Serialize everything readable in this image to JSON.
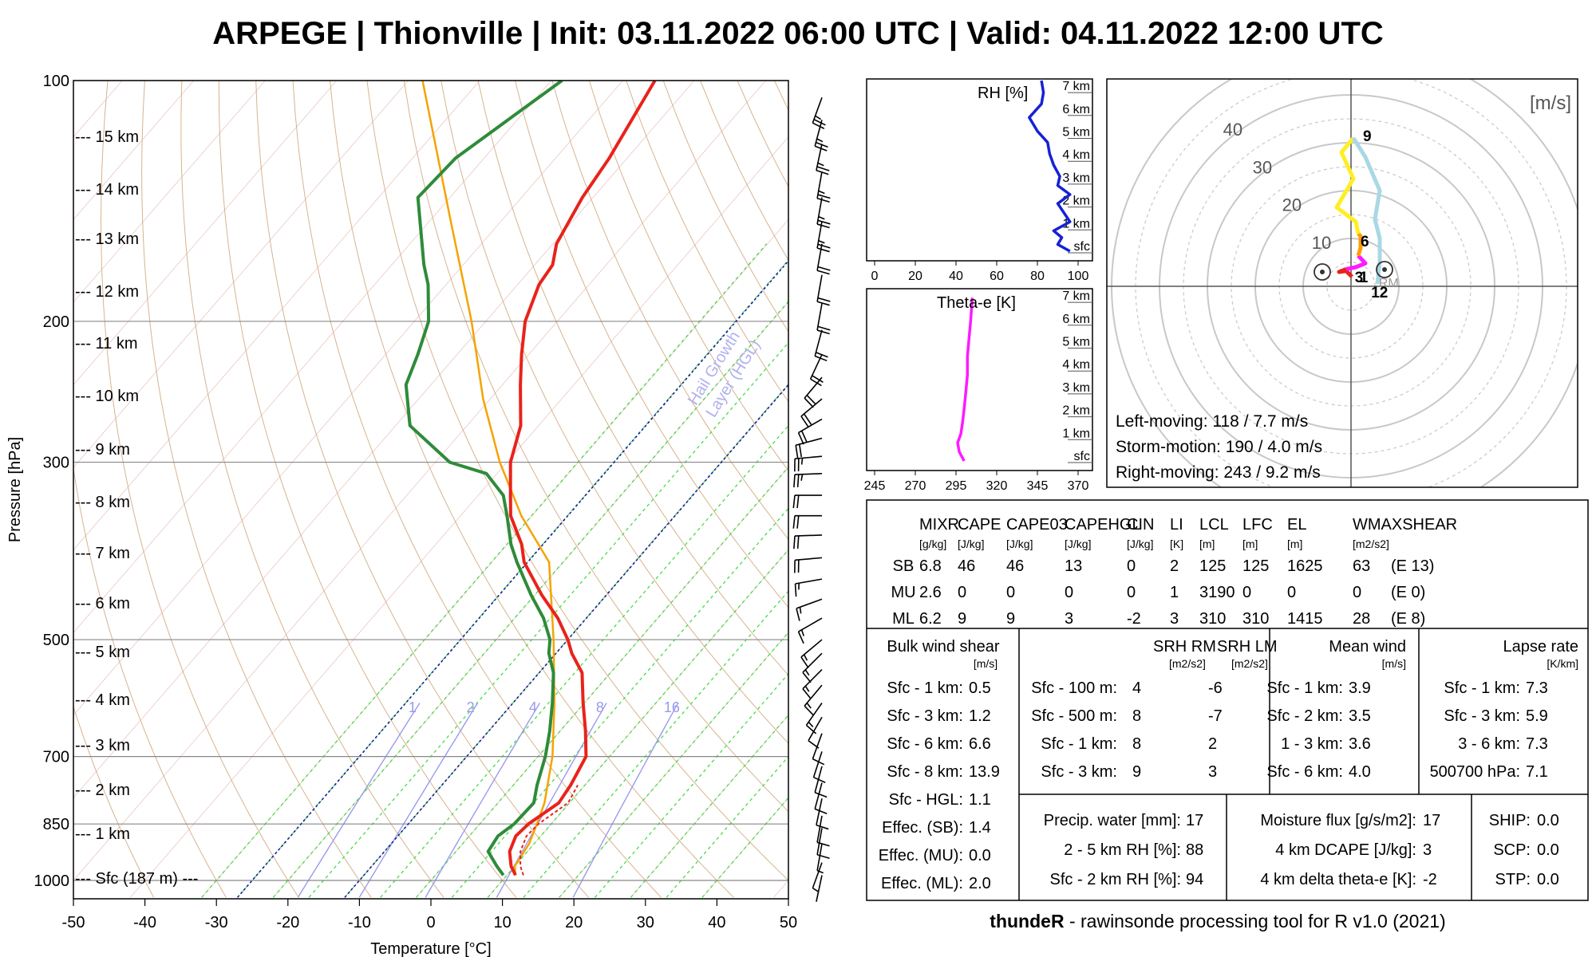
{
  "title": "ARPEGE | Thionville | Init: 03.11.2022 06:00 UTC | Valid: 04.11.2022 12:00 UTC",
  "colors": {
    "temperature": "#e8231b",
    "dewpoint": "#2e8b3a",
    "parcel": "#f5a300",
    "rh": "#1621d6",
    "thetae": "#ff1aff",
    "dry_adiabat": "#c89a6a",
    "moist_adiabat": "#44dd44",
    "mixing_ratio": "#9a9aee",
    "hgl": "#1a1aa6"
  },
  "chart_data": [
    {
      "type": "line",
      "name": "skew-t",
      "xlabel": "Temperature [°C]",
      "ylabel": "Pressure [hPa]",
      "xlim": [
        -50,
        50
      ],
      "ylim": [
        1050,
        100
      ],
      "x_ticks": [
        "-50",
        "-40",
        "-30",
        "-20",
        "-10",
        "0",
        "10",
        "20",
        "30",
        "40",
        "50"
      ],
      "p_ticks": [
        "100",
        "200",
        "300",
        "500",
        "700",
        "850",
        "1000"
      ],
      "height_labels": [
        "--- Sfc (187 m) ---",
        "--- 1 km",
        "--- 2 km",
        "--- 3 km",
        "--- 4 km",
        "--- 5 km",
        "--- 6 km",
        "--- 7 km",
        "--- 8 km",
        "--- 9 km",
        "--- 10 km",
        "--- 11 km",
        "--- 12 km",
        "--- 13 km",
        "--- 14 km",
        "--- 15 km"
      ],
      "mixing_ratio_labels": [
        "1",
        "2",
        "4",
        "8",
        "16"
      ],
      "hgl_label_1": "Hail Growth",
      "hgl_label_2": "Layer (HGL)",
      "series": [
        {
          "name": "temperature",
          "p": [
            985,
            960,
            920,
            880,
            850,
            800,
            760,
            700,
            650,
            600,
            550,
            520,
            500,
            470,
            440,
            400,
            380,
            350,
            330,
            300,
            270,
            240,
            220,
            200,
            180,
            170,
            160,
            140,
            125,
            100
          ],
          "t": [
            11.2,
            9.5,
            7.5,
            6.5,
            6.8,
            8.5,
            8.0,
            6.7,
            3.5,
            -0.2,
            -4.0,
            -7.8,
            -10.0,
            -14.0,
            -19.0,
            -25.5,
            -28.0,
            -33.0,
            -35.5,
            -39.5,
            -42.5,
            -47.5,
            -51.0,
            -54.5,
            -57.0,
            -57.5,
            -59.5,
            -61.5,
            -62.5,
            -65.5
          ]
        },
        {
          "name": "dewpoint",
          "p": [
            985,
            960,
            920,
            880,
            850,
            800,
            760,
            700,
            650,
            600,
            550,
            520,
            500,
            470,
            440,
            400,
            380,
            350,
            330,
            310,
            300,
            270,
            240,
            220,
            200,
            180,
            170,
            140,
            125,
            100
          ],
          "t": [
            9.5,
            7.5,
            4.5,
            4.0,
            4.8,
            5.0,
            3.3,
            1.0,
            -1.5,
            -4.5,
            -8.0,
            -11.0,
            -12.5,
            -16.0,
            -20.5,
            -26.5,
            -29.5,
            -33.5,
            -36.5,
            -41.5,
            -48.0,
            -58.0,
            -63.5,
            -65.5,
            -68.0,
            -72.5,
            -75.5,
            -84.5,
            -84.0,
            -78.5
          ]
        },
        {
          "name": "parcel",
          "p": [
            985,
            960,
            900,
            850,
            800,
            700,
            600,
            500,
            400,
            350,
            300,
            250,
            200,
            150,
            100
          ],
          "t": [
            11.2,
            10.0,
            9.3,
            8.0,
            6.5,
            2.0,
            -4.2,
            -12.0,
            -22.0,
            -31.5,
            -41.0,
            -51.0,
            -62.0,
            -77.0,
            -98.0
          ]
        },
        {
          "name": "virtual",
          "p": [
            985,
            960,
            920,
            880,
            850,
            800,
            760
          ],
          "t": [
            12.3,
            10.8,
            9.0,
            8.0,
            8.2,
            9.8,
            9.0
          ]
        }
      ],
      "wind_barbs": [
        {
          "p": 985,
          "dir": 192,
          "spd": 2.0
        },
        {
          "p": 950,
          "dir": 200,
          "spd": 4.0
        },
        {
          "p": 900,
          "dir": 190,
          "spd": 4.5
        },
        {
          "p": 860,
          "dir": 190,
          "spd": 5.0
        },
        {
          "p": 830,
          "dir": 190,
          "spd": 5.0
        },
        {
          "p": 790,
          "dir": 192,
          "spd": 5.0
        },
        {
          "p": 755,
          "dir": 195,
          "spd": 5.0
        },
        {
          "p": 720,
          "dir": 195,
          "spd": 5.0
        },
        {
          "p": 690,
          "dir": 198,
          "spd": 6.0
        },
        {
          "p": 655,
          "dir": 200,
          "spd": 6.0
        },
        {
          "p": 625,
          "dir": 210,
          "spd": 7.0
        },
        {
          "p": 600,
          "dir": 215,
          "spd": 7.5
        },
        {
          "p": 570,
          "dir": 220,
          "spd": 8.0
        },
        {
          "p": 545,
          "dir": 225,
          "spd": 8.0
        },
        {
          "p": 520,
          "dir": 225,
          "spd": 8.5
        },
        {
          "p": 500,
          "dir": 230,
          "spd": 9.0
        },
        {
          "p": 470,
          "dir": 240,
          "spd": 9.0
        },
        {
          "p": 445,
          "dir": 250,
          "spd": 9.0
        },
        {
          "p": 420,
          "dir": 260,
          "spd": 9.5
        },
        {
          "p": 395,
          "dir": 265,
          "spd": 10.0
        },
        {
          "p": 370,
          "dir": 268,
          "spd": 11.0
        },
        {
          "p": 350,
          "dir": 270,
          "spd": 12.0
        },
        {
          "p": 330,
          "dir": 270,
          "spd": 12.0
        },
        {
          "p": 310,
          "dir": 268,
          "spd": 13.0
        },
        {
          "p": 295,
          "dir": 265,
          "spd": 13.0
        },
        {
          "p": 280,
          "dir": 255,
          "spd": 12.0
        },
        {
          "p": 265,
          "dir": 240,
          "spd": 12.0
        },
        {
          "p": 250,
          "dir": 230,
          "spd": 12.0
        },
        {
          "p": 235,
          "dir": 220,
          "spd": 11.0
        },
        {
          "p": 220,
          "dir": 205,
          "spd": 11.0
        },
        {
          "p": 205,
          "dir": 195,
          "spd": 11.0
        },
        {
          "p": 190,
          "dir": 190,
          "spd": 11.5
        },
        {
          "p": 175,
          "dir": 190,
          "spd": 12.0
        },
        {
          "p": 160,
          "dir": 190,
          "spd": 12.0
        },
        {
          "p": 150,
          "dir": 190,
          "spd": 12.5
        },
        {
          "p": 140,
          "dir": 190,
          "spd": 13.0
        },
        {
          "p": 130,
          "dir": 190,
          "spd": 13.0
        },
        {
          "p": 120,
          "dir": 192,
          "spd": 13.5
        },
        {
          "p": 112,
          "dir": 195,
          "spd": 14.0
        },
        {
          "p": 105,
          "dir": 200,
          "spd": 14.0
        }
      ]
    },
    {
      "type": "line",
      "name": "rh-profile",
      "title": "RH [%]",
      "xlim": [
        0,
        100
      ],
      "x_ticks": [
        "0",
        "20",
        "40",
        "60",
        "80",
        "100"
      ],
      "y_labels": [
        "sfc",
        "1 km",
        "2 km",
        "3 km",
        "4 km",
        "5 km",
        "6 km",
        "7 km"
      ],
      "ylim": [
        0,
        7.5
      ],
      "series": [
        {
          "name": "rh",
          "x": [
            96,
            90,
            92,
            88,
            96,
            93,
            90,
            96,
            90,
            91,
            88,
            86,
            85,
            80,
            76,
            82,
            83,
            82
          ],
          "y": [
            0,
            0.3,
            0.6,
            0.9,
            1.3,
            1.7,
            2.1,
            2.5,
            2.9,
            3.3,
            3.8,
            4.3,
            4.8,
            5.3,
            5.9,
            6.5,
            7.0,
            7.6
          ]
        }
      ]
    },
    {
      "type": "line",
      "name": "thetae-profile",
      "title": "Theta-e [K]",
      "xlim": [
        245,
        370
      ],
      "x_ticks": [
        "245",
        "270",
        "295",
        "320",
        "345",
        "370"
      ],
      "y_labels": [
        "sfc",
        "1 km",
        "2 km",
        "3 km",
        "4 km",
        "5 km",
        "6 km",
        "7 km"
      ],
      "ylim": [
        0,
        7.5
      ],
      "series": [
        {
          "name": "thetae",
          "x": [
            300,
            297,
            296,
            298,
            299,
            300,
            301,
            302,
            302,
            303,
            304,
            305
          ],
          "y": [
            0,
            0.4,
            0.8,
            1.2,
            1.7,
            2.3,
            3.0,
            3.8,
            4.6,
            5.4,
            6.2,
            7.2
          ]
        }
      ]
    },
    {
      "type": "line",
      "name": "hodograph",
      "unit": "[m/s]",
      "ring_labels": [
        "10",
        "20",
        "30",
        "40"
      ],
      "point_labels": [
        "9",
        "6",
        "3",
        "1",
        "12",
        "RM"
      ],
      "series": [
        {
          "name": "0-1 km",
          "color": "#e8231b",
          "u": [
            0.2,
            -1.0,
            -2.5,
            -1.0
          ],
          "v": [
            2.0,
            3.2,
            3.0,
            3.6
          ]
        },
        {
          "name": "1-3 km",
          "color": "#ff1aff",
          "u": [
            -1.0,
            1.0,
            3.0,
            1.5
          ],
          "v": [
            3.6,
            4.0,
            4.8,
            6.4
          ]
        },
        {
          "name": "3-6 km",
          "color": "#ff9e00",
          "u": [
            1.5,
            2.0,
            2.0,
            1.5
          ],
          "v": [
            6.4,
            8.0,
            10.5,
            11.0
          ]
        },
        {
          "name": "6-9 km",
          "color": "#ffee22",
          "u": [
            1.5,
            1.0,
            -3.0,
            0.5,
            -2.0,
            0.5
          ],
          "v": [
            11.0,
            13.5,
            16.5,
            22.5,
            28.0,
            31.0
          ]
        },
        {
          "name": "9-12 km",
          "color": "#a8d8e4",
          "u": [
            0.5,
            3.0,
            6.0,
            5.0,
            6.0,
            6.0,
            5.5
          ],
          "v": [
            31.0,
            27.0,
            20.0,
            14.0,
            10.0,
            5.0,
            0.5
          ]
        }
      ],
      "storm_motion": {
        "lm_u": -6,
        "lm_v": 3,
        "rm_u": 7.0,
        "rm_v": 3.5
      },
      "left_moving": "Left-moving: 118 / 7.7 m/s",
      "storm_motion_text": "Storm-motion: 190 / 4.0 m/s",
      "right_moving": "Right-moving: 243 / 9.2 m/s"
    }
  ],
  "params": {
    "headers": [
      "MIXR",
      "CAPE",
      "CAPE03",
      "CAPEHGL",
      "CIN",
      "LI",
      "LCL",
      "LFC",
      "EL",
      "WMAXSHEAR"
    ],
    "units": [
      "[g/kg]",
      "[J/kg]",
      "[J/kg]",
      "[J/kg]",
      "[J/kg]",
      "[K]",
      "[m]",
      "[m]",
      "[m]",
      "[m2/s2]"
    ],
    "rows": [
      {
        "label": "SB",
        "vals": [
          "6.8",
          "46",
          "46",
          "13",
          "0",
          "2",
          "125",
          "125",
          "1625",
          "63",
          "(E 13)"
        ]
      },
      {
        "label": "MU",
        "vals": [
          "2.6",
          "0",
          "0",
          "0",
          "0",
          "1",
          "3190",
          "0",
          "0",
          "0",
          "(E 0)"
        ]
      },
      {
        "label": "ML",
        "vals": [
          "6.2",
          "9",
          "9",
          "3",
          "-2",
          "3",
          "310",
          "310",
          "1415",
          "28",
          "(E 8)"
        ]
      }
    ]
  },
  "shear": {
    "title": "Bulk wind shear",
    "unit": "[m/s]",
    "rows": [
      {
        "k": "Sfc - 1 km:",
        "v": "0.5"
      },
      {
        "k": "Sfc - 3 km:",
        "v": "1.2"
      },
      {
        "k": "Sfc - 6 km:",
        "v": "6.6"
      },
      {
        "k": "Sfc - 8 km:",
        "v": "13.9"
      },
      {
        "k": "Sfc - HGL:",
        "v": "1.1"
      },
      {
        "k": "Effec. (SB):",
        "v": "1.4"
      },
      {
        "k": "Effec. (MU):",
        "v": "0.0"
      },
      {
        "k": "Effec. (ML):",
        "v": "2.0"
      }
    ]
  },
  "srh": {
    "h1": "SRH RM",
    "h2": "SRH LM",
    "u1": "[m2/s2]",
    "u2": "[m2/s2]",
    "rows": [
      {
        "k": "Sfc - 100 m:",
        "rm": "4",
        "lm": "-6"
      },
      {
        "k": "Sfc - 500 m:",
        "rm": "8",
        "lm": "-7"
      },
      {
        "k": "Sfc - 1 km:",
        "rm": "8",
        "lm": "2"
      },
      {
        "k": "Sfc - 3 km:",
        "rm": "9",
        "lm": "3"
      }
    ]
  },
  "meanwind": {
    "title": "Mean wind",
    "unit": "[m/s]",
    "rows": [
      {
        "k": "Sfc - 1 km:",
        "v": "3.9"
      },
      {
        "k": "Sfc - 2 km:",
        "v": "3.5"
      },
      {
        "k": "1 - 3 km:",
        "v": "3.6"
      },
      {
        "k": "Sfc - 6 km:",
        "v": "4.0"
      }
    ]
  },
  "lapse": {
    "title": "Lapse rate",
    "unit": "[K/km]",
    "rows": [
      {
        "k": "Sfc - 1 km:",
        "v": "7.3"
      },
      {
        "k": "Sfc - 3 km:",
        "v": "5.9"
      },
      {
        "k": "3 - 6 km:",
        "v": "7.3"
      },
      {
        "k": "500700 hPa:",
        "v": "7.1"
      }
    ]
  },
  "moisture": {
    "rows": [
      {
        "k": "Precip. water [mm]:",
        "v": "17"
      },
      {
        "k": "2 - 5 km RH [%]:",
        "v": "88"
      },
      {
        "k": "Sfc - 2 km RH [%]:",
        "v": "94"
      }
    ]
  },
  "flux": {
    "rows": [
      {
        "k": "Moisture flux [g/s/m2]:",
        "v": "17"
      },
      {
        "k": "4 km DCAPE [J/kg]:",
        "v": "3"
      },
      {
        "k": "4 km delta theta-e [K]:",
        "v": "-2"
      }
    ]
  },
  "indices": {
    "rows": [
      {
        "k": "SHIP:",
        "v": "0.0"
      },
      {
        "k": "SCP:",
        "v": "0.0"
      },
      {
        "k": "STP:",
        "v": "0.0"
      }
    ]
  },
  "footer": {
    "brand": "thundeR",
    "text": " - rawinsonde processing tool for R v1.0 (2021)"
  }
}
